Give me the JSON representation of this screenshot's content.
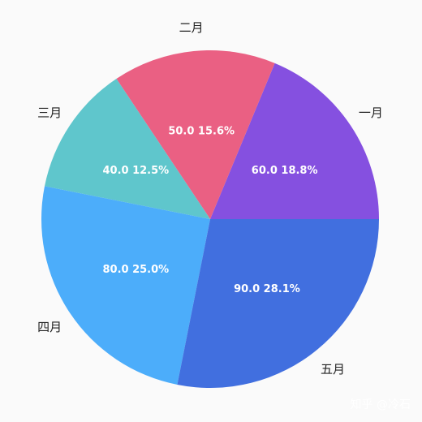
{
  "chart_data": {
    "type": "pie",
    "categories": [
      "一月",
      "二月",
      "三月",
      "四月",
      "五月"
    ],
    "values": [
      60.0,
      50.0,
      40.0,
      80.0,
      90.0
    ],
    "percent_labels": [
      "60.0 18.8%",
      "50.0 15.6%",
      "40.0 12.5%",
      "80.0 25.0%",
      "90.0 28.1%"
    ],
    "colors": [
      "#8550e0",
      "#ea6083",
      "#5fc6cc",
      "#4cadfa",
      "#416fdf"
    ],
    "start": "right, counter-clockwise",
    "legend": "none"
  },
  "watermark": "知乎 @冷石"
}
